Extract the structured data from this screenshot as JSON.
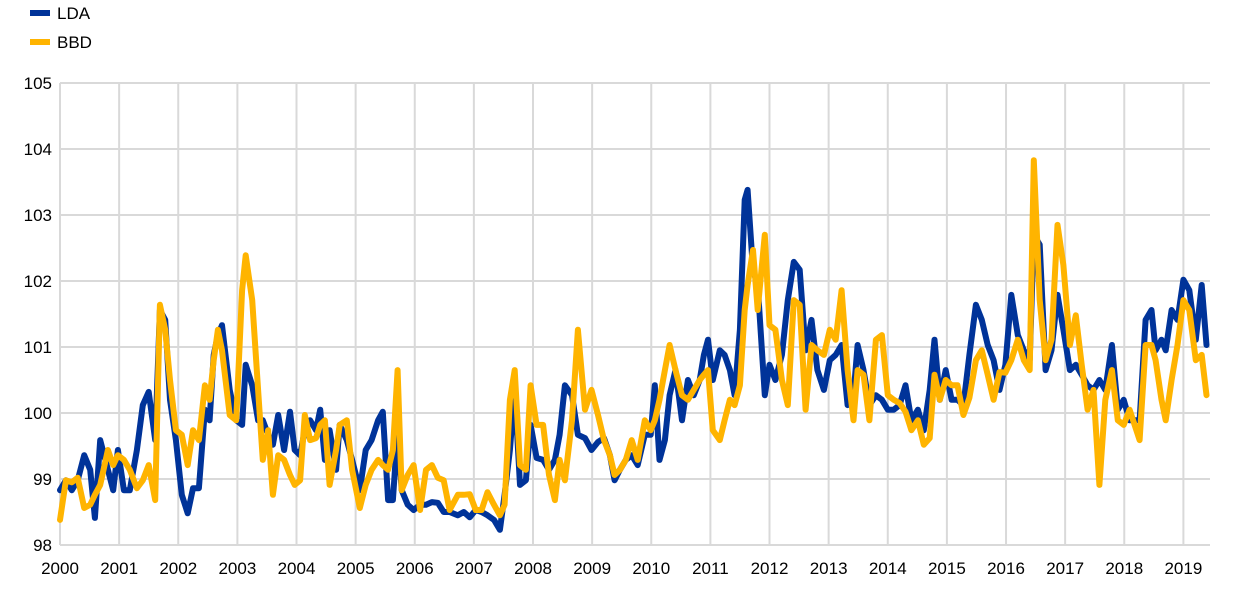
{
  "chart_data": {
    "type": "line",
    "title": "",
    "xlabel": "",
    "ylabel": "",
    "xlim": [
      2000,
      2019.45
    ],
    "ylim": [
      98,
      105
    ],
    "grid": true,
    "legend_position": "top-left",
    "y_ticks": [
      "98",
      "99",
      "100",
      "101",
      "102",
      "103",
      "104",
      "105"
    ],
    "x_ticks": [
      "2000",
      "2001",
      "2002",
      "2003",
      "2004",
      "2005",
      "2006",
      "2007",
      "2008",
      "2009",
      "2010",
      "2011",
      "2012",
      "2013",
      "2014",
      "2015",
      "2016",
      "2017",
      "2018",
      "2019"
    ],
    "x": [
      2000.0,
      2000.1,
      2000.2,
      2000.3,
      2000.41,
      2000.51,
      2000.59,
      2000.68,
      2000.81,
      2000.9,
      2000.98,
      2001.08,
      2001.18,
      2001.3,
      2001.4,
      2001.5,
      2001.61,
      2001.69,
      2001.78,
      2001.86,
      2001.96,
      2002.06,
      2002.16,
      2002.25,
      2002.35,
      2002.45,
      2002.53,
      2002.6,
      2002.67,
      2002.74,
      2002.87,
      2002.98,
      2003.08,
      2003.14,
      2003.25,
      2003.35,
      2003.43,
      2003.52,
      2003.6,
      2003.69,
      2003.79,
      2003.89,
      2003.97,
      2004.06,
      2004.14,
      2004.23,
      2004.33,
      2004.4,
      2004.48,
      2004.56,
      2004.67,
      2004.73,
      2004.85,
      2004.94,
      2005.07,
      2005.17,
      2005.27,
      2005.38,
      2005.46,
      2005.55,
      2005.63,
      2005.71,
      2005.78,
      2005.88,
      2005.98,
      2006.09,
      2006.19,
      2006.29,
      2006.39,
      2006.49,
      2006.59,
      2006.73,
      2006.83,
      2006.93,
      2007.03,
      2007.13,
      2007.23,
      2007.34,
      2007.44,
      2007.52,
      2007.61,
      2007.69,
      2007.78,
      2007.88,
      2007.96,
      2008.06,
      2008.17,
      2008.27,
      2008.37,
      2008.45,
      2008.54,
      2008.66,
      2008.76,
      2008.88,
      2008.99,
      2009.1,
      2009.2,
      2009.3,
      2009.38,
      2009.47,
      2009.57,
      2009.67,
      2009.77,
      2009.89,
      2009.99,
      2010.06,
      2010.14,
      2010.23,
      2010.31,
      2010.41,
      2010.52,
      2010.62,
      2010.72,
      2010.82,
      2010.89,
      2010.96,
      2011.04,
      2011.16,
      2011.24,
      2011.33,
      2011.41,
      2011.5,
      2011.58,
      2011.63,
      2011.72,
      2011.8,
      2011.92,
      2012.0,
      2012.1,
      2012.21,
      2012.31,
      2012.41,
      2012.51,
      2012.61,
      2012.71,
      2012.81,
      2012.92,
      2013.02,
      2013.12,
      2013.22,
      2013.32,
      2013.42,
      2013.49,
      2013.59,
      2013.69,
      2013.8,
      2013.9,
      2014.0,
      2014.1,
      2014.2,
      2014.3,
      2014.4,
      2014.51,
      2014.61,
      2014.71,
      2014.79,
      2014.88,
      2014.98,
      2015.08,
      2015.18,
      2015.28,
      2015.38,
      2015.49,
      2015.59,
      2015.69,
      2015.79,
      2015.89,
      2015.99,
      2016.09,
      2016.2,
      2016.3,
      2016.4,
      2016.47,
      2016.57,
      2016.67,
      2016.77,
      2016.87,
      2016.97,
      2017.08,
      2017.18,
      2017.28,
      2017.38,
      2017.48,
      2017.58,
      2017.68,
      2017.79,
      2017.89,
      2017.99,
      2018.09,
      2018.26,
      2018.36,
      2018.46,
      2018.53,
      2018.63,
      2018.7,
      2018.8,
      2018.9,
      2019.0,
      2019.1,
      2019.21,
      2019.31,
      2019.39
    ],
    "series": [
      {
        "name": "LDA",
        "color": "#003399",
        "values": [
          98.83,
          98.98,
          98.83,
          98.98,
          99.36,
          99.14,
          98.41,
          99.59,
          99.14,
          98.83,
          99.44,
          98.83,
          98.83,
          99.44,
          100.12,
          100.32,
          99.59,
          101.56,
          101.41,
          100.2,
          99.59,
          98.76,
          98.48,
          98.86,
          98.86,
          100.05,
          99.89,
          100.88,
          101.18,
          101.33,
          100.35,
          99.89,
          99.82,
          100.73,
          100.42,
          99.89,
          99.89,
          99.67,
          99.52,
          99.97,
          99.44,
          100.02,
          99.44,
          99.36,
          99.74,
          99.89,
          99.74,
          100.05,
          99.29,
          99.74,
          99.14,
          99.82,
          99.59,
          99.29,
          98.83,
          99.44,
          99.59,
          99.89,
          100.02,
          98.68,
          98.68,
          99.74,
          98.83,
          98.61,
          98.53,
          98.61,
          98.61,
          98.65,
          98.64,
          98.5,
          98.5,
          98.45,
          98.5,
          98.42,
          98.53,
          98.5,
          98.45,
          98.38,
          98.23,
          98.76,
          99.44,
          100.35,
          98.91,
          98.98,
          99.82,
          99.32,
          99.29,
          99.14,
          99.29,
          99.67,
          100.42,
          100.27,
          99.67,
          99.62,
          99.44,
          99.56,
          99.62,
          99.36,
          98.98,
          99.14,
          99.29,
          99.36,
          99.21,
          99.67,
          99.67,
          100.42,
          99.29,
          99.59,
          100.27,
          100.65,
          99.89,
          100.5,
          100.27,
          100.5,
          100.88,
          101.11,
          100.5,
          100.95,
          100.88,
          100.65,
          100.27,
          101.26,
          103.23,
          103.38,
          102.17,
          101.94,
          100.27,
          100.73,
          100.5,
          100.88,
          101.71,
          102.29,
          102.17,
          100.95,
          101.41,
          100.65,
          100.35,
          100.8,
          100.88,
          101.03,
          100.12,
          100.27,
          101.03,
          100.65,
          100.12,
          100.27,
          100.2,
          100.05,
          100.05,
          100.12,
          100.42,
          99.89,
          100.05,
          99.74,
          100.35,
          101.11,
          100.2,
          100.65,
          100.2,
          100.2,
          100.12,
          100.88,
          101.64,
          101.41,
          101.03,
          100.8,
          100.35,
          100.73,
          101.79,
          101.18,
          100.95,
          100.8,
          102.7,
          102.55,
          100.65,
          100.95,
          101.79,
          101.26,
          100.65,
          100.73,
          100.58,
          100.42,
          100.35,
          100.5,
          100.35,
          101.03,
          100.05,
          100.2,
          99.89,
          99.89,
          101.41,
          101.56,
          100.95,
          101.11,
          100.95,
          101.56,
          101.41,
          102.02,
          101.86,
          101.11,
          101.94,
          101.03
        ]
      },
      {
        "name": "BBD",
        "color": "#FFB400",
        "values": [
          98.38,
          98.98,
          98.95,
          99.02,
          98.56,
          98.61,
          98.76,
          98.91,
          99.44,
          99.21,
          99.36,
          99.29,
          99.14,
          98.86,
          98.98,
          99.21,
          98.68,
          101.64,
          101.26,
          100.5,
          99.74,
          99.67,
          99.21,
          99.74,
          99.59,
          100.42,
          100.2,
          100.8,
          101.26,
          100.95,
          99.97,
          99.89,
          101.86,
          102.39,
          101.71,
          100.35,
          99.29,
          99.74,
          98.76,
          99.36,
          99.29,
          99.06,
          98.91,
          98.98,
          99.97,
          99.59,
          99.62,
          99.82,
          99.89,
          98.91,
          99.44,
          99.82,
          99.89,
          99.14,
          98.56,
          98.91,
          99.14,
          99.29,
          99.21,
          99.14,
          99.44,
          100.65,
          98.83,
          99.06,
          99.21,
          98.53,
          99.14,
          99.21,
          99.02,
          98.98,
          98.53,
          98.76,
          98.76,
          98.77,
          98.53,
          98.53,
          98.8,
          98.61,
          98.45,
          98.61,
          100.2,
          100.65,
          99.21,
          99.14,
          100.42,
          99.82,
          99.82,
          99.06,
          98.68,
          99.29,
          98.98,
          99.89,
          101.26,
          100.05,
          100.35,
          99.97,
          99.59,
          99.36,
          99.06,
          99.14,
          99.29,
          99.59,
          99.29,
          99.89,
          99.74,
          99.89,
          100.2,
          100.65,
          101.03,
          100.65,
          100.27,
          100.2,
          100.35,
          100.5,
          100.58,
          100.65,
          99.74,
          99.59,
          99.89,
          100.2,
          100.12,
          100.42,
          101.56,
          101.94,
          102.47,
          101.56,
          102.7,
          101.33,
          101.26,
          100.5,
          100.12,
          101.71,
          101.64,
          100.05,
          101.03,
          100.95,
          100.88,
          101.26,
          101.11,
          101.86,
          100.65,
          99.89,
          100.65,
          100.58,
          99.89,
          101.11,
          101.18,
          100.27,
          100.2,
          100.15,
          100.02,
          99.74,
          99.89,
          99.52,
          99.62,
          100.58,
          100.2,
          100.5,
          100.42,
          100.42,
          99.97,
          100.23,
          100.8,
          100.95,
          100.58,
          100.2,
          100.62,
          100.61,
          100.8,
          101.11,
          100.8,
          100.65,
          103.83,
          101.71,
          100.8,
          101.11,
          102.85,
          102.24,
          101.03,
          101.48,
          100.73,
          100.05,
          100.35,
          98.91,
          100.2,
          100.65,
          99.89,
          99.82,
          100.05,
          99.59,
          101.03,
          101.03,
          100.8,
          100.2,
          99.89,
          100.5,
          101.03,
          101.71,
          101.56,
          100.8,
          100.88,
          100.27
        ]
      }
    ]
  }
}
